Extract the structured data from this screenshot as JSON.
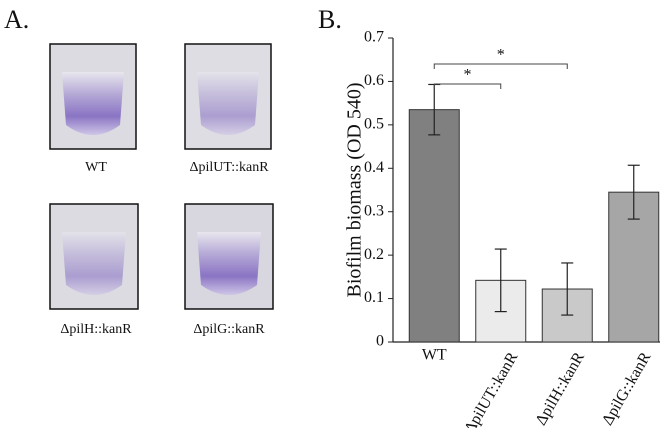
{
  "panel_a": {
    "label": "A.",
    "captions": [
      "WT",
      "ΔpilUT::kanR",
      "ΔpilH::kanR",
      "ΔpilG::kanR"
    ]
  },
  "chart_data": {
    "type": "bar",
    "label": "B.",
    "y_label": "Biofilm biomass (OD 540)",
    "categories": [
      "WT",
      "ΔpilUT::kanR",
      "ΔpilH::kanR",
      "ΔpilG::kanR"
    ],
    "values": [
      0.535,
      0.142,
      0.122,
      0.345
    ],
    "errors": [
      0.058,
      0.072,
      0.06,
      0.062
    ],
    "colors": [
      "#808080",
      "#ebebeb",
      "#c9c9c9",
      "#a6a6a6"
    ],
    "ylim": [
      0,
      0.7
    ],
    "yticks": [
      0,
      0.1,
      0.2,
      0.3,
      0.4,
      0.5,
      0.6,
      0.7
    ],
    "significance": [
      {
        "from": 0,
        "to": 1,
        "label": "*"
      },
      {
        "from": 0,
        "to": 2,
        "label": "*"
      }
    ]
  }
}
